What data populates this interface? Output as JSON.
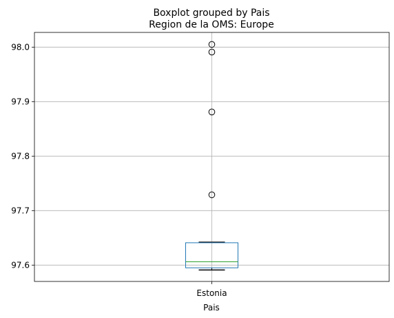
{
  "chart_data": {
    "type": "boxplot",
    "suptitle": "Boxplot grouped by Pais",
    "title": "Region de la OMS: Europe",
    "xlabel": "Pais",
    "ylabel": "",
    "categories": [
      "Estonia"
    ],
    "ylim": [
      97.57,
      98.027
    ],
    "yticks": [
      97.6,
      97.7,
      97.8,
      97.9,
      98.0
    ],
    "yticklabels": [
      "97.6",
      "97.7",
      "97.8",
      "97.9",
      "98.0"
    ],
    "grid": true,
    "boxes": [
      {
        "category": "Estonia",
        "whisker_low": 97.591,
        "q1": 97.595,
        "median": 97.606,
        "q3": 97.641,
        "whisker_high": 97.642,
        "outliers": [
          97.729,
          97.881,
          97.991,
          98.005
        ]
      }
    ],
    "colors": {
      "box": "#1f77b4",
      "median": "#2ca02c",
      "whisker": "#000000",
      "grid": "#b0b0b0"
    }
  }
}
